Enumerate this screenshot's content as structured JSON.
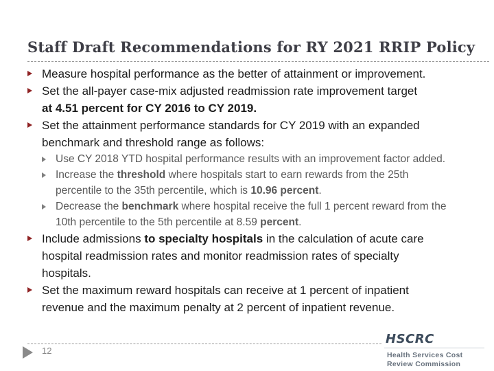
{
  "slide": {
    "title": "Staff Draft Recommendations for RY 2021 RRIP Policy",
    "page_number": "12"
  },
  "colors": {
    "title_text": "#3e3e46",
    "body_text": "#1c1c1c",
    "sub_text": "#595959",
    "level1_bullet": "#8f2223",
    "level2_bullet": "#808080",
    "dashed_rule": "#999999",
    "logo_blue": "#3c4b5c",
    "logo_gray": "#68727e",
    "logo_accent": "#d9a285"
  },
  "bullets": [
    {
      "level": 1,
      "segments": [
        {
          "text": "Measure hospital performance as the better of attainment or improvement.",
          "bold": false
        }
      ]
    },
    {
      "level": 1,
      "segments": [
        {
          "text": "Set the all-payer case-mix adjusted readmission rate improvement target\n",
          "bold": false
        },
        {
          "text": "at 4.51 percent for CY 2016 to CY 2019.",
          "bold": true
        }
      ]
    },
    {
      "level": 1,
      "segments": [
        {
          "text": "Set the attainment performance standards for CY 2019 with an expanded\nbenchmark and threshold range as follows:",
          "bold": false
        }
      ]
    },
    {
      "level": 2,
      "segments": [
        {
          "text": "Use CY 2018 YTD hospital performance results with an improvement factor added.",
          "bold": false
        }
      ]
    },
    {
      "level": 2,
      "segments": [
        {
          "text": "Increase the ",
          "bold": false
        },
        {
          "text": "threshold",
          "bold": true
        },
        {
          "text": " where hospitals start to earn rewards from the 25th\npercentile to the 35th percentile, which is ",
          "bold": false
        },
        {
          "text": "10.96 percent",
          "bold": true
        },
        {
          "text": ".",
          "bold": false
        }
      ]
    },
    {
      "level": 2,
      "segments": [
        {
          "text": "Decrease the ",
          "bold": false
        },
        {
          "text": "benchmark",
          "bold": true
        },
        {
          "text": " where hospital receive the full 1 percent reward from the\n10th percentile to the 5th percentile at 8.59 ",
          "bold": false
        },
        {
          "text": "percent",
          "bold": true
        },
        {
          "text": ".",
          "bold": false
        }
      ]
    },
    {
      "level": 1,
      "segments": [
        {
          "text": "Include admissions ",
          "bold": false
        },
        {
          "text": "to specialty hospitals",
          "bold": true
        },
        {
          "text": " in the calculation of acute care\nhospital readmission rates and monitor readmission rates of specialty\nhospitals.",
          "bold": false
        }
      ]
    },
    {
      "level": 1,
      "segments": [
        {
          "text": "Set the maximum reward hospitals can receive at 1 percent of inpatient\nrevenue and the maximum penalty at 2 percent of inpatient revenue.",
          "bold": false
        }
      ]
    }
  ],
  "footer": {
    "logo": {
      "acronym": "HSCRC",
      "subtitle_line1": "Health Services Cost",
      "subtitle_line2": "Review Commission"
    }
  }
}
